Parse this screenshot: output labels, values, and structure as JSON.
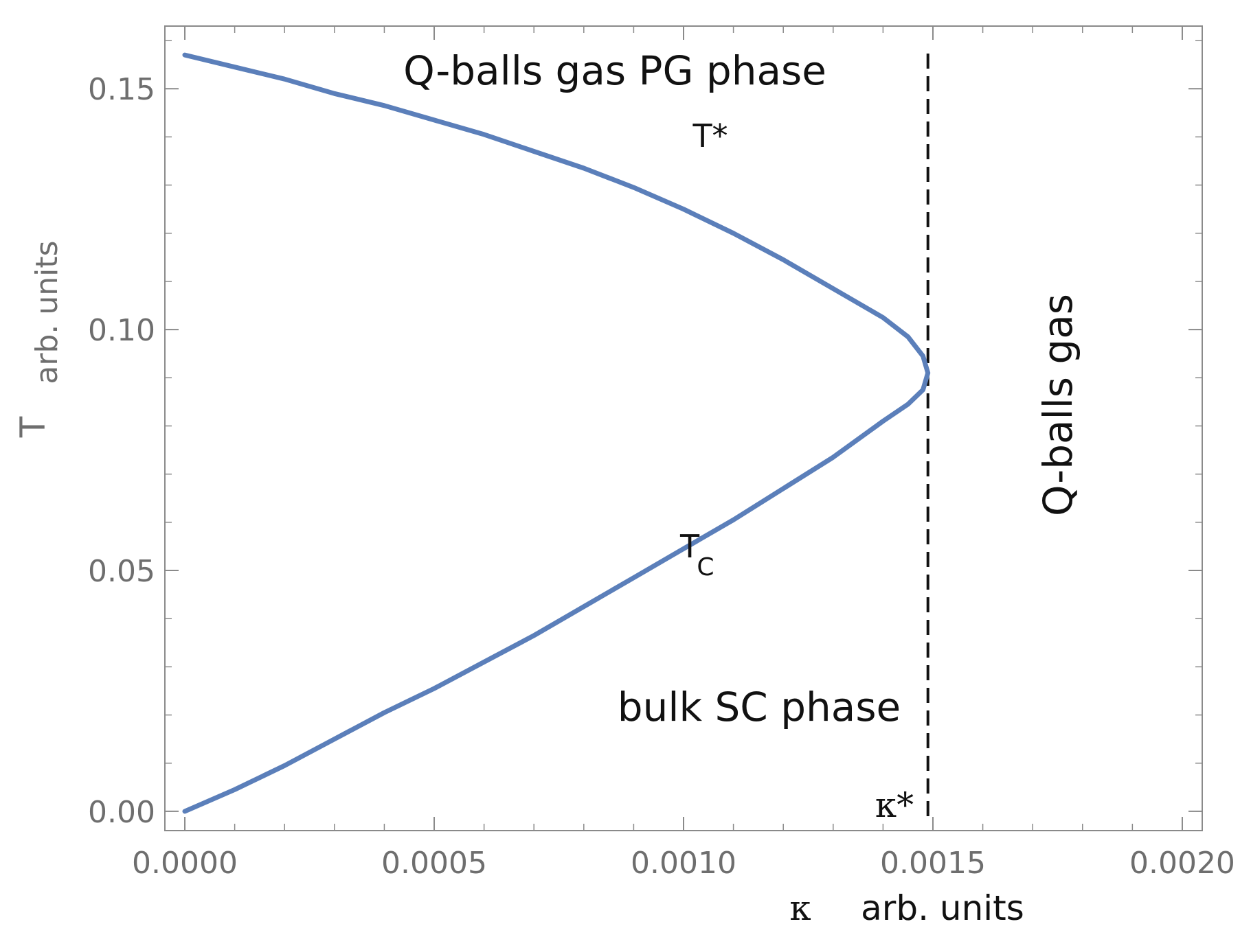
{
  "chart_data": {
    "type": "line",
    "xlim": [
      -4e-05,
      0.00204
    ],
    "ylim": [
      -0.004,
      0.163
    ],
    "x_ticks": [
      "0.0000",
      "0.0005",
      "0.0010",
      "0.0015",
      "0.0020"
    ],
    "y_ticks": [
      "0.00",
      "0.05",
      "0.10",
      "0.15"
    ],
    "x_tick_values": [
      0,
      0.0005,
      0.001,
      0.0015,
      0.002
    ],
    "y_tick_values": [
      0,
      0.05,
      0.1,
      0.15
    ],
    "x_minor_step": 0.0001,
    "y_minor_step": 0.01,
    "xlabel": {
      "symbol": "κ",
      "unit": "arb. units"
    },
    "ylabel": {
      "symbol": "T",
      "unit": "arb. units"
    },
    "series": [
      {
        "color": "#5b7fba",
        "x": [
          0,
          0.0001,
          0.0002,
          0.0003,
          0.0004,
          0.0005,
          0.0006,
          0.0007,
          0.0008,
          0.0009,
          0.001,
          0.0011,
          0.0012,
          0.0013,
          0.0014,
          0.00145,
          0.00148,
          0.00149,
          0.00148,
          0.00145,
          0.0014,
          0.0013,
          0.0012,
          0.0011,
          0.001,
          0.0009,
          0.0008,
          0.0007,
          0.0006,
          0.0005,
          0.0004,
          0.0003,
          0.0002,
          0.0001,
          0
        ],
        "y": [
          0,
          0.0045,
          0.0095,
          0.015,
          0.0205,
          0.0255,
          0.031,
          0.0365,
          0.0425,
          0.0485,
          0.0545,
          0.0605,
          0.067,
          0.0735,
          0.081,
          0.0845,
          0.0875,
          0.091,
          0.0945,
          0.0985,
          0.1025,
          0.1085,
          0.1145,
          0.12,
          0.125,
          0.1295,
          0.1335,
          0.137,
          0.1405,
          0.1435,
          0.1465,
          0.149,
          0.152,
          0.1545,
          0.157
        ]
      }
    ],
    "reference_lines": [
      {
        "orientation": "vertical",
        "x": 0.00149,
        "style": "dashed",
        "color": "#000000",
        "label": "κ*"
      }
    ],
    "annotations": {
      "pg_phase": "Q-balls gas PG phase",
      "t_star": "T*",
      "tc_main": "T",
      "tc_sub": "C",
      "bulk_sc": "bulk SC phase",
      "q_balls_gas": "Q-balls gas"
    },
    "grid": false,
    "legend": "none"
  }
}
